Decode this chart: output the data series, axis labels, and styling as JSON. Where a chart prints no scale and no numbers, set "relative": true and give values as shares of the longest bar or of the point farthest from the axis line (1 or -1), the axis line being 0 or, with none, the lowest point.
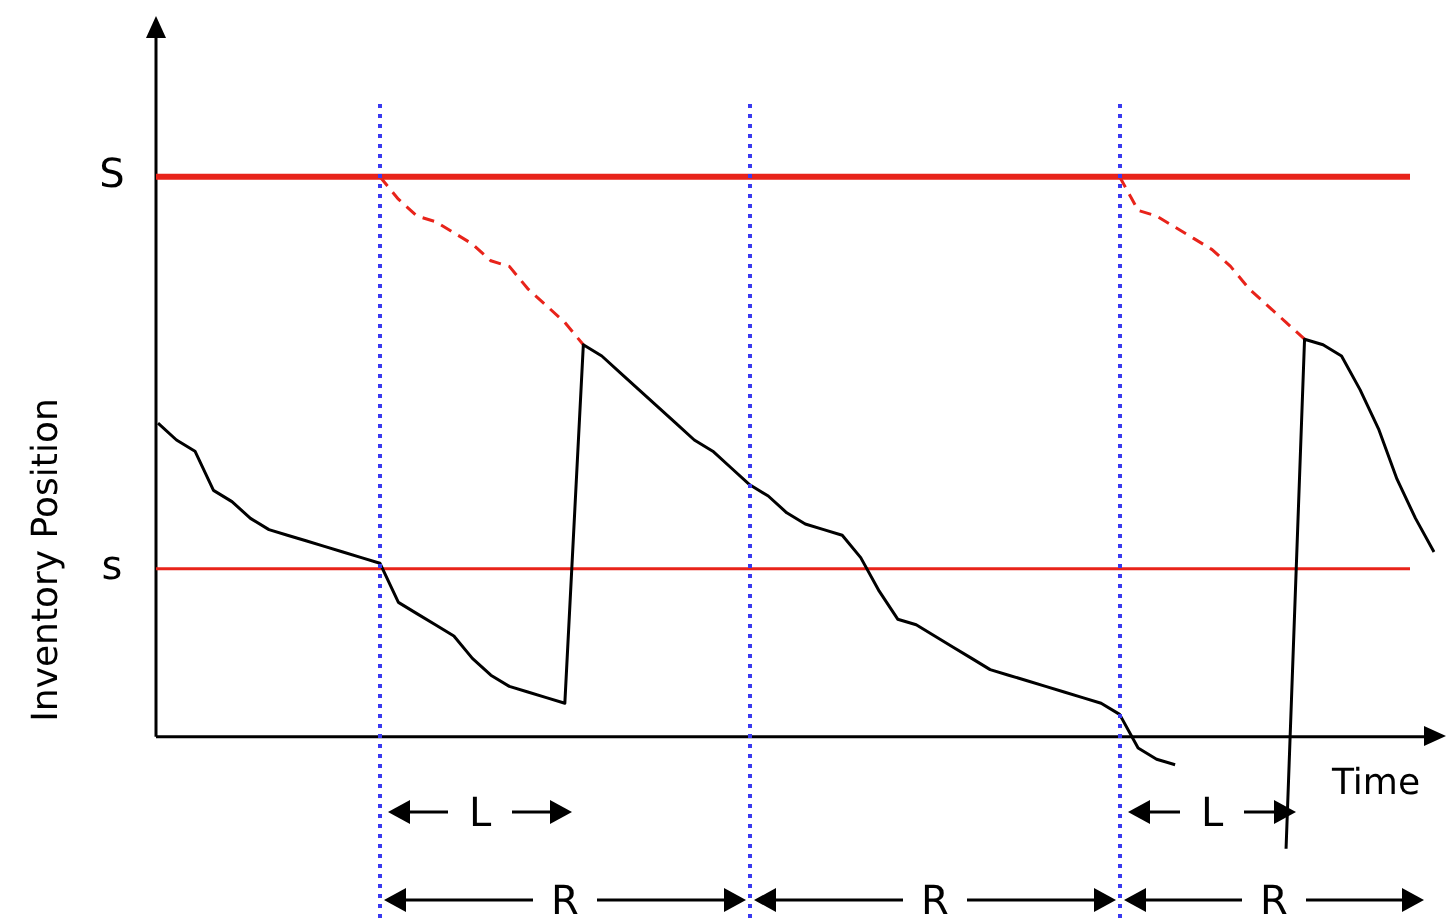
{
  "chart_data": {
    "type": "line",
    "relative": true,
    "xlabel": "Time",
    "ylabel": "Inventory Position",
    "categories": [
      null,
      null,
      null,
      null,
      null,
      null,
      null,
      null,
      null,
      null,
      null,
      null,
      null,
      null,
      null,
      null,
      null,
      null,
      null,
      null,
      null,
      null,
      null,
      null,
      null,
      null,
      null,
      null,
      null,
      null,
      null,
      null,
      null,
      null,
      null,
      null,
      null,
      null,
      null,
      null,
      null,
      null,
      null,
      null,
      null,
      null,
      null,
      null,
      null,
      null,
      null,
      null,
      null,
      null,
      null,
      null,
      null,
      null,
      null,
      null,
      null,
      null,
      null,
      null,
      null,
      null,
      null,
      null,
      null,
      null
    ],
    "series": [
      {
        "color": "#000000",
        "values": [
          0.56,
          0.53,
          0.51,
          0.44,
          0.42,
          0.39,
          0.37,
          0.36,
          0.35,
          0.34,
          0.33,
          0.32,
          0.31,
          0.24,
          0.22,
          0.2,
          0.18,
          0.14,
          0.11,
          0.09,
          0.08,
          0.07,
          0.06,
          0.7,
          0.68,
          0.65,
          0.62,
          0.59,
          0.56,
          0.53,
          0.51,
          0.48,
          0.45,
          0.43,
          0.4,
          0.38,
          0.37,
          0.36,
          0.32,
          0.26,
          0.21,
          0.2,
          0.18,
          0.16,
          0.14,
          0.12,
          0.11,
          0.1,
          0.09,
          0.08,
          0.07,
          0.06,
          0.04,
          -0.02,
          -0.04,
          -0.05,
          null,
          null,
          null,
          null,
          null,
          -0.2,
          0.71,
          0.7,
          0.68,
          0.62,
          0.55,
          0.46,
          0.39,
          0.33
        ]
      },
      {
        "color": "#e8231a",
        "line_style": "dashed",
        "values": [
          null,
          null,
          null,
          null,
          null,
          null,
          null,
          null,
          null,
          null,
          null,
          null,
          1.0,
          0.96,
          0.93,
          0.92,
          0.9,
          0.88,
          0.85,
          0.84,
          0.8,
          0.77,
          0.74,
          0.7,
          null,
          null,
          null,
          null,
          null,
          null,
          null,
          null,
          null,
          null,
          null,
          null,
          null,
          null,
          null,
          null,
          null,
          null,
          null,
          null,
          null,
          null,
          null,
          null,
          null,
          null,
          null,
          null,
          1.0,
          0.94,
          0.93,
          0.91,
          0.89,
          0.87,
          0.84,
          0.8,
          0.77,
          0.74,
          0.71,
          null,
          null,
          null,
          null,
          null,
          null,
          null
        ]
      }
    ],
    "ref_lines": [
      {
        "axis": "y",
        "value": 1,
        "label": "S",
        "color": "#e8231a"
      },
      {
        "axis": "y",
        "value": 0.3,
        "label": "s",
        "color": "#e8231a"
      }
    ],
    "annotations": [
      "L",
      "L",
      "R",
      "R",
      "R"
    ]
  }
}
